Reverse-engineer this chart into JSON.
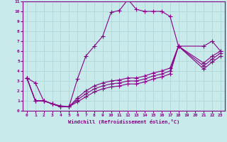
{
  "background_color": "#c8eaea",
  "grid_color": "#b0d8d8",
  "line_color": "#880088",
  "marker": "+",
  "marker_size": 4,
  "xlabel": "Windchill (Refroidissement éolien,°C)",
  "xlim": [
    -0.5,
    23.5
  ],
  "ylim": [
    0,
    11
  ],
  "xticks": [
    0,
    1,
    2,
    3,
    4,
    5,
    6,
    7,
    8,
    9,
    10,
    11,
    12,
    13,
    14,
    15,
    16,
    17,
    18,
    19,
    20,
    21,
    22,
    23
  ],
  "yticks": [
    0,
    1,
    2,
    3,
    4,
    5,
    6,
    7,
    8,
    9,
    10,
    11
  ],
  "lines": [
    {
      "x": [
        0,
        1,
        2,
        3,
        4,
        5,
        6,
        7,
        8,
        9,
        10,
        11,
        12,
        13,
        14,
        15,
        16,
        17,
        18,
        21,
        22,
        23
      ],
      "y": [
        3.3,
        2.8,
        1.0,
        0.7,
        0.5,
        0.4,
        3.2,
        5.5,
        6.5,
        7.5,
        9.9,
        10.1,
        11.2,
        10.2,
        10.0,
        10.0,
        10.0,
        9.5,
        6.5,
        6.5,
        7.0,
        6.0
      ]
    },
    {
      "x": [
        0,
        1,
        2,
        3,
        4,
        5,
        6,
        7,
        8,
        9,
        10,
        11,
        12,
        13,
        14,
        15,
        16,
        17,
        18,
        21,
        22,
        23
      ],
      "y": [
        3.3,
        1.0,
        1.0,
        0.7,
        0.4,
        0.4,
        1.3,
        2.0,
        2.5,
        2.8,
        3.0,
        3.1,
        3.3,
        3.3,
        3.5,
        3.8,
        4.0,
        4.3,
        6.5,
        4.8,
        5.5,
        6.0
      ]
    },
    {
      "x": [
        0,
        1,
        2,
        3,
        4,
        5,
        6,
        7,
        8,
        9,
        10,
        11,
        12,
        13,
        14,
        15,
        16,
        17,
        18,
        21,
        22,
        23
      ],
      "y": [
        3.3,
        1.0,
        1.0,
        0.7,
        0.4,
        0.4,
        1.1,
        1.7,
        2.2,
        2.5,
        2.7,
        2.8,
        3.0,
        3.0,
        3.2,
        3.5,
        3.7,
        4.0,
        6.5,
        4.5,
        5.2,
        5.8
      ]
    },
    {
      "x": [
        0,
        1,
        2,
        3,
        4,
        5,
        6,
        7,
        8,
        9,
        10,
        11,
        12,
        13,
        14,
        15,
        16,
        17,
        18,
        21,
        22,
        23
      ],
      "y": [
        3.3,
        1.0,
        1.0,
        0.7,
        0.4,
        0.4,
        0.9,
        1.4,
        1.9,
        2.2,
        2.4,
        2.5,
        2.7,
        2.7,
        2.9,
        3.2,
        3.4,
        3.7,
        6.5,
        4.2,
        4.9,
        5.5
      ]
    }
  ]
}
